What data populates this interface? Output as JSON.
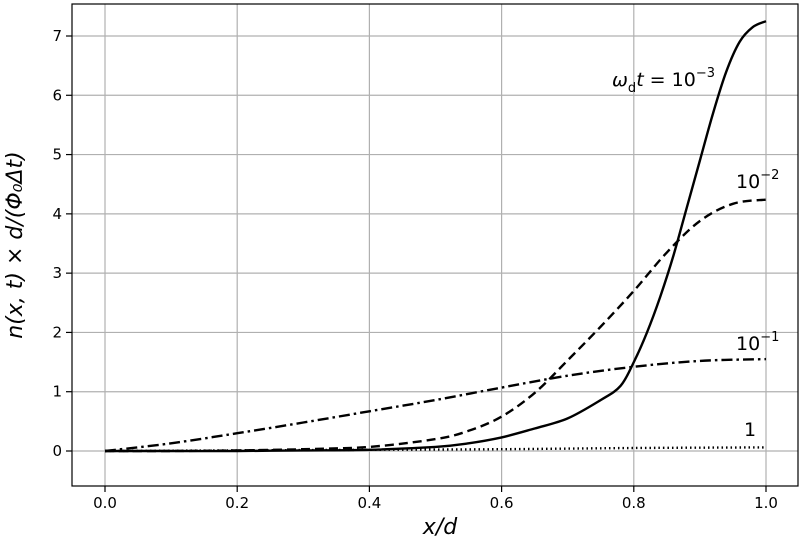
{
  "chart_data": {
    "type": "line",
    "xlabel": "x/d",
    "ylabel": "n(x, t) × d/(Φ₀Δt)",
    "xlim": [
      0.0,
      1.0
    ],
    "ylim": [
      0.0,
      7.25
    ],
    "grid": true,
    "x_ticks": [
      "0.0",
      "0.2",
      "0.4",
      "0.6",
      "0.8",
      "1.0"
    ],
    "y_ticks": [
      "0",
      "1",
      "2",
      "3",
      "4",
      "5",
      "6",
      "7"
    ],
    "x_tick_values": [
      0.0,
      0.2,
      0.4,
      0.6,
      0.8,
      1.0
    ],
    "y_tick_values": [
      0,
      1,
      2,
      3,
      4,
      5,
      6,
      7
    ],
    "series": [
      {
        "name": "ω_d t = 10^-3",
        "style": "solid",
        "x": [
          0.0,
          0.1,
          0.2,
          0.3,
          0.4,
          0.5,
          0.55,
          0.6,
          0.65,
          0.7,
          0.75,
          0.78,
          0.8,
          0.82,
          0.84,
          0.86,
          0.88,
          0.9,
          0.92,
          0.94,
          0.96,
          0.98,
          1.0
        ],
        "y": [
          0.0,
          0.0,
          0.0,
          0.01,
          0.02,
          0.07,
          0.13,
          0.23,
          0.38,
          0.55,
          0.86,
          1.1,
          1.5,
          2.0,
          2.6,
          3.3,
          4.1,
          4.9,
          5.7,
          6.4,
          6.9,
          7.15,
          7.25
        ]
      },
      {
        "name": "10^-2",
        "style": "dashed",
        "x": [
          0.0,
          0.1,
          0.2,
          0.3,
          0.4,
          0.5,
          0.55,
          0.6,
          0.65,
          0.7,
          0.75,
          0.8,
          0.85,
          0.9,
          0.95,
          1.0
        ],
        "y": [
          0.0,
          0.0,
          0.01,
          0.03,
          0.07,
          0.2,
          0.34,
          0.58,
          0.98,
          1.53,
          2.1,
          2.7,
          3.35,
          3.88,
          4.17,
          4.24
        ]
      },
      {
        "name": "10^-1",
        "style": "dashdot",
        "x": [
          0.0,
          0.1,
          0.2,
          0.3,
          0.4,
          0.5,
          0.6,
          0.7,
          0.8,
          0.9,
          1.0
        ],
        "y": [
          0.0,
          0.13,
          0.3,
          0.48,
          0.67,
          0.86,
          1.07,
          1.27,
          1.42,
          1.52,
          1.55
        ]
      },
      {
        "name": "1",
        "style": "dotted",
        "x": [
          0.0,
          0.2,
          0.4,
          0.6,
          0.8,
          1.0
        ],
        "y": [
          0.0,
          0.01,
          0.02,
          0.03,
          0.05,
          0.06
        ]
      }
    ]
  },
  "labels": {
    "s0_omega": "ω",
    "s0_d": "d",
    "s0_t": "t",
    "s0_eq": " = 10",
    "s0_exp": "−3",
    "s1_base": "10",
    "s1_exp": "−2",
    "s2_base": "10",
    "s2_exp": "−1",
    "s3": "1"
  }
}
